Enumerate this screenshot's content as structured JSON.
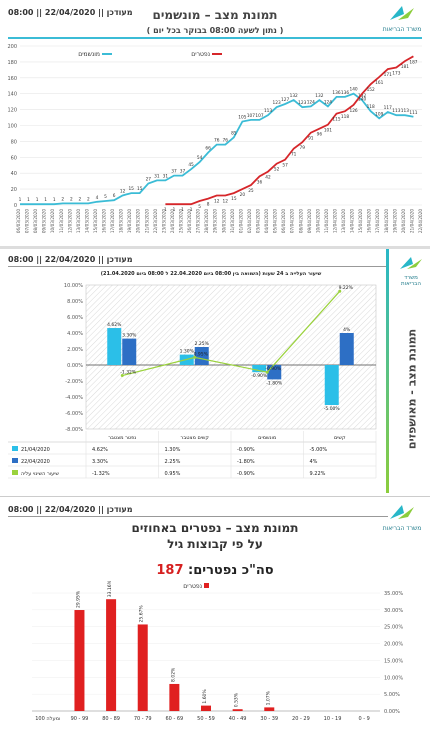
{
  "panel1": {
    "updated_label": "מעודכן || 22/04/2020 || 08:00",
    "title": "תמונת מצב – מונשמים",
    "subtitle": "( נתון לשעה 08:00 בבוקר בכל יום )",
    "logo_text": "משרד הבריאות",
    "colors": {
      "ventilated": "#3bbcd6",
      "deceased": "#d6262a"
    },
    "chart_data": {
      "type": "line",
      "ylim": [
        0,
        200
      ],
      "yticks": [
        0,
        20,
        40,
        60,
        80,
        100,
        120,
        140,
        160,
        180,
        200
      ],
      "x": [
        "06/03/2020",
        "07/03/2020",
        "08/03/2020",
        "09/03/2020",
        "10/03/2020",
        "11/03/2020",
        "12/03/2020",
        "13/03/2020",
        "14/03/2020",
        "15/03/2020",
        "16/03/2020",
        "17/03/2020",
        "18/03/2020",
        "19/03/2020",
        "20/03/2020",
        "21/03/2020",
        "22/03/2020",
        "23/03/2020",
        "24/03/2020",
        "25/03/2020",
        "26/03/2020",
        "27/03/2020",
        "28/03/2020",
        "29/03/2020",
        "30/03/2020",
        "31/03/2020",
        "01/04/2020",
        "02/04/2020",
        "03/04/2020",
        "04/04/2020",
        "05/04/2020",
        "06/04/2020",
        "07/04/2020",
        "08/04/2020",
        "09/04/2020",
        "10/04/2020",
        "11/04/2020",
        "12/04/2020",
        "13/04/2020",
        "14/04/2020",
        "15/04/2020",
        "16/04/2020",
        "17/04/2020",
        "18/04/2020",
        "19/04/2020",
        "20/04/2020",
        "21/04/2020",
        "22/04/2020"
      ],
      "series": [
        {
          "name": "מונשמים",
          "values": [
            1,
            1,
            1,
            1,
            1,
            2,
            2,
            2,
            2,
            4,
            5,
            6,
            12,
            15,
            15,
            27,
            31,
            31,
            37,
            37,
            45,
            54,
            66,
            76,
            76,
            85,
            105,
            107,
            107,
            113,
            123,
            127,
            132,
            123,
            124,
            132,
            124,
            136,
            136,
            140,
            132,
            118,
            109,
            117,
            113,
            113,
            111,
            null
          ]
        },
        {
          "name": "נפטרים",
          "values": [
            null,
            null,
            null,
            null,
            null,
            null,
            null,
            null,
            null,
            null,
            null,
            null,
            null,
            null,
            null,
            null,
            null,
            1,
            1,
            1,
            1,
            5,
            8,
            12,
            12,
            15,
            20,
            25,
            36,
            42,
            52,
            57,
            71,
            79,
            91,
            96,
            101,
            115,
            118,
            126,
            140,
            152,
            161,
            171,
            173,
            181,
            187,
            null
          ]
        }
      ],
      "data_labels": [
        {
          "series": "מונשמים",
          "labels": [
            "1",
            "1",
            "1",
            "1",
            "1",
            "2",
            "2",
            "2",
            "2",
            "4",
            "5",
            "6",
            "12",
            "15",
            "15",
            "27",
            "31",
            "31",
            "37",
            "37",
            "45",
            "54",
            "66",
            "76",
            "76",
            "85",
            "105",
            "107",
            "107",
            "113",
            "123",
            "127",
            "132",
            "123",
            "124",
            "132",
            "124",
            "136",
            "136",
            "140",
            "132",
            "118",
            "109",
            "117",
            "113",
            "113",
            "111"
          ]
        },
        {
          "series": "נפטרים",
          "labels": [
            "1",
            "1",
            "1",
            "1",
            "5",
            "8",
            "12",
            "12",
            "15",
            "20",
            "25",
            "36",
            "42",
            "52",
            "57",
            "71",
            "79",
            "91",
            "96",
            "101",
            "115",
            "118",
            "126",
            "140",
            "152",
            "161",
            "171",
            "173",
            "181",
            "187"
          ]
        }
      ]
    }
  },
  "panel2": {
    "updated_label": "מעודכן || 22/04/2020 || 08:00",
    "side_title": "תמונת מצב - מאושפזים",
    "logo_text": "משרד הבריאות",
    "chart_title": "שיעור העלייה ב 24 שעות (השוואה בין 08:00 ביום 22.04.2020 ל 08:00 ביום 21.04.2020)",
    "colors": {
      "d21": "#2bbfe8",
      "d22": "#2d6fc5",
      "rate": "#9ad23c"
    },
    "chart_data": {
      "type": "bar",
      "categories": [
        "נפטר מצטבר",
        "קשים מצטבר",
        "מונשמים",
        "קשים"
      ],
      "ylim": [
        -8,
        10
      ],
      "yticks": [
        "-8.00%",
        "-6.00%",
        "-4.00%",
        "-2.00%",
        "0.00%",
        "2.00%",
        "4.00%",
        "6.00%",
        "8.00%",
        "10.00%"
      ],
      "series": [
        {
          "name": "21/04/2020",
          "values": [
            4.62,
            1.3,
            -0.9,
            -5.0
          ],
          "labels": [
            "4.62%",
            "1.30%",
            "-0.90%",
            "-5.00%"
          ]
        },
        {
          "name": "22/04/2020",
          "values": [
            3.3,
            2.25,
            -1.8,
            4.0
          ],
          "labels": [
            "3.30%",
            "2.25%",
            "-1.80%",
            "4%"
          ]
        },
        {
          "name": "שיעור השינוי עליה",
          "values": [
            -1.32,
            0.95,
            -0.9,
            9.22
          ],
          "labels": [
            "-1.32%",
            "0.95%",
            "-0.90%",
            "9.22%"
          ]
        }
      ],
      "table_rows": [
        {
          "legend": "21/04/2020",
          "cells": [
            "4.62%",
            "1.30%",
            "-0.90%",
            "-5.00%"
          ]
        },
        {
          "legend": "22/04/2020",
          "cells": [
            "3.30%",
            "2.25%",
            "-1.80%",
            "4%"
          ]
        },
        {
          "legend": "שיעור השינוי עליה",
          "cells": [
            "-1.32%",
            "0.95%",
            "-0.90%",
            "9.22%"
          ]
        }
      ]
    }
  },
  "panel3": {
    "updated_label": "מעודכן || 22/04/2020 || 08:00",
    "logo_text": "משרד הבריאות",
    "title_line1": "תמונת מצב – נפטרים באחוזים",
    "title_line2": "על פי קבוצות גיל",
    "total_label": "סה\"כ נפטרים:",
    "total_value": "187",
    "colors": {
      "bars": "#e02020"
    },
    "chart_data": {
      "type": "bar",
      "legend": "נפטרים",
      "categories": [
        "0 - 9",
        "10 - 19",
        "20 - 29",
        "30 - 39",
        "40 - 49",
        "50 - 59",
        "60 - 69",
        "70 - 79",
        "80 - 89",
        "90 - 99",
        "100 ומעלה"
      ],
      "values": [
        0,
        0,
        0,
        1.07,
        0.53,
        1.6,
        8.02,
        25.67,
        33.16,
        29.95,
        0
      ],
      "labels": [
        "",
        "",
        "",
        "1.07%",
        "0.53%",
        "1.60%",
        "8.02%",
        "25.67%",
        "33.16%",
        "29.95%",
        ""
      ],
      "ylim": [
        0,
        35
      ],
      "yticks": [
        "0.00%",
        "5.00%",
        "10.00%",
        "15.00%",
        "20.00%",
        "25.00%",
        "30.00%",
        "35.00%"
      ]
    }
  }
}
